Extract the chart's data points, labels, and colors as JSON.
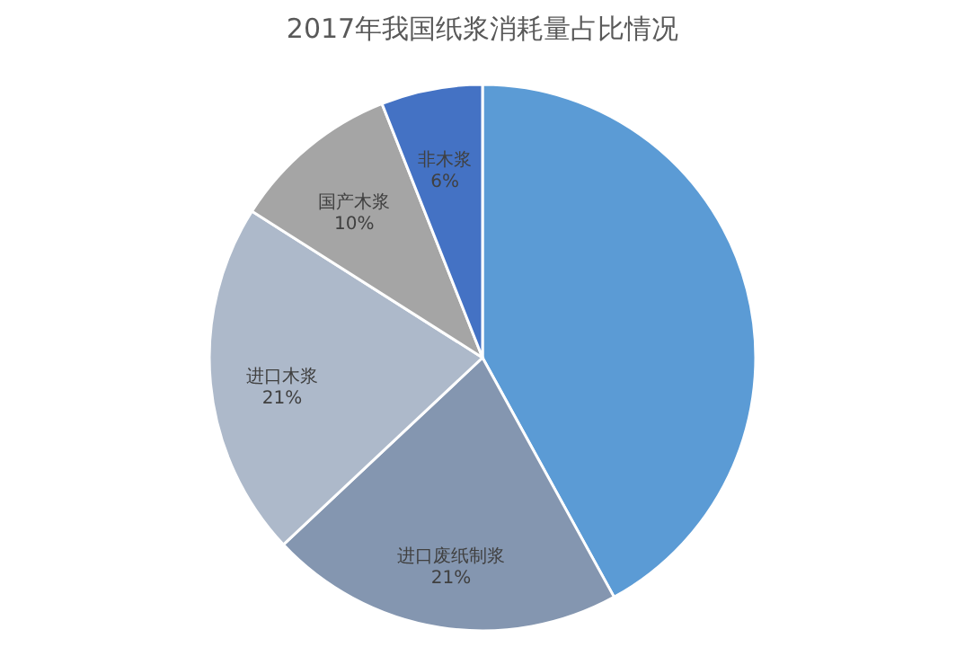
{
  "chart_data": {
    "type": "pie",
    "title": "2017年我国纸浆消耗量占比情况",
    "categories": [
      null,
      "进口废纸制浆",
      "进口木浆",
      "国产木浆",
      "非木浆"
    ],
    "values": [
      42,
      21,
      21,
      10,
      6
    ],
    "value_labels": [
      null,
      "21%",
      "21%",
      "10%",
      "6%"
    ],
    "colors": [
      "#5b9bd5",
      "#8496b0",
      "#adb9ca",
      "#a5a5a5",
      "#4472c4"
    ],
    "legend": false
  }
}
